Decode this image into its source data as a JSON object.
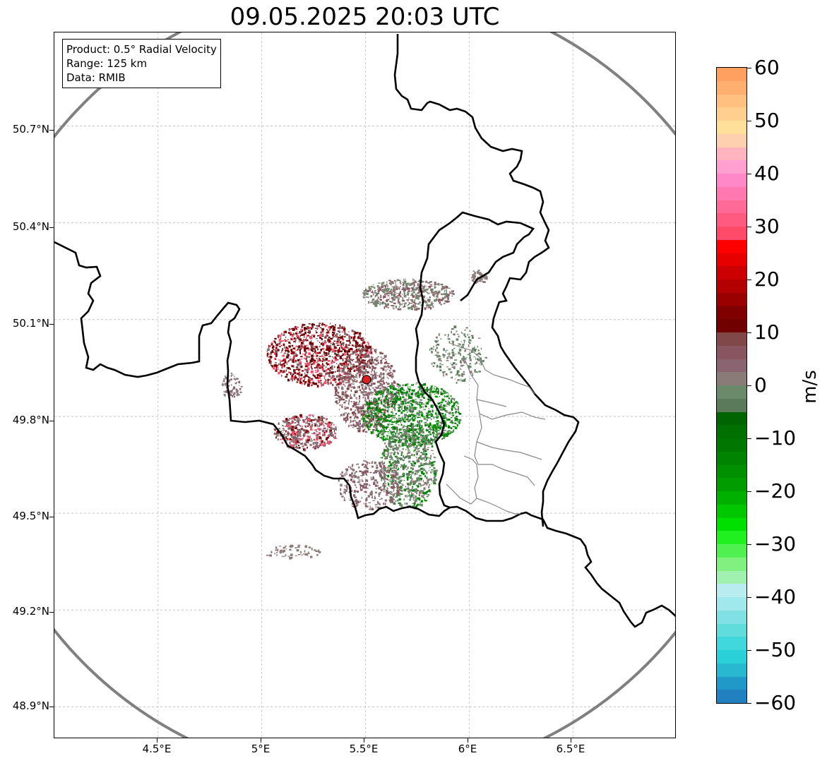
{
  "title": "09.05.2025 20:03 UTC",
  "info": {
    "product": "Product: 0.5° Radial Velocity",
    "range": "Range: 125 km",
    "source": "Data: RMIB"
  },
  "map": {
    "lon_range": [
      4.0,
      7.0
    ],
    "lat_range": [
      48.8,
      50.99
    ],
    "lat_ticks": [
      "50.7°N",
      "50.4°N",
      "50.1°N",
      "49.8°N",
      "49.5°N",
      "49.2°N",
      "48.9°N"
    ],
    "lon_ticks": [
      "4.5°E",
      "5°E",
      "5.5°E",
      "6°E",
      "6.5°E"
    ],
    "radar_site": {
      "lon": 5.505,
      "lat": 49.914
    },
    "range_ring_color": "#808080",
    "border_color": "#000000",
    "grid": "dashed"
  },
  "colorbar": {
    "unit": "m/s",
    "ticks": [
      "60",
      "50",
      "40",
      "30",
      "20",
      "10",
      "0",
      "−10",
      "−20",
      "−30",
      "−40",
      "−50",
      "−60"
    ],
    "range": [
      -60,
      60
    ],
    "colors_top_to_bottom": [
      "#ffa060",
      "#ffb070",
      "#ffc080",
      "#ffcf90",
      "#ffe09a",
      "#ffd0b0",
      "#ffb4c0",
      "#ffa0d0",
      "#ff88c8",
      "#ff78b0",
      "#ff6a98",
      "#ff5a80",
      "#ff4a6a",
      "#ff0000",
      "#e60000",
      "#cc0000",
      "#b30000",
      "#990000",
      "#800000",
      "#700000",
      "#804848",
      "#885560",
      "#8a6470",
      "#8a7a78",
      "#6a8a6a",
      "#5a7a5a",
      "#006400",
      "#007000",
      "#007800",
      "#008400",
      "#009000",
      "#009c00",
      "#00b000",
      "#00c800",
      "#00e000",
      "#20f020",
      "#50f050",
      "#80f080",
      "#a0f0b0",
      "#b8ecf0",
      "#a0e8ec",
      "#80e0e4",
      "#60dcdc",
      "#40d8dc",
      "#2ad0d8",
      "#28b8d0",
      "#2098c8",
      "#2080c0"
    ]
  }
}
